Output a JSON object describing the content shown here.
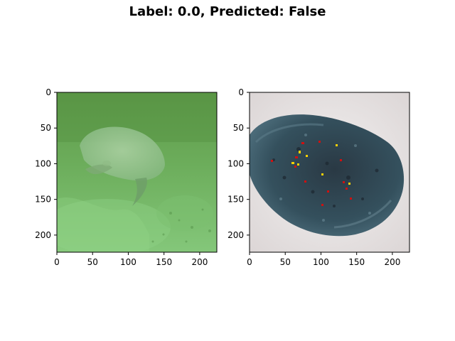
{
  "figure": {
    "title": "Label: 0.0, Predicted: False"
  },
  "panels": [
    {
      "name": "left-image",
      "content": "underwater fish photo, green tint",
      "x_ticks": [
        "0",
        "50",
        "100",
        "150",
        "200"
      ],
      "y_ticks": [
        "0",
        "50",
        "100",
        "150",
        "200"
      ],
      "x_tick_values": [
        0,
        50,
        100,
        150,
        200
      ],
      "y_tick_values": [
        0,
        50,
        100,
        150,
        200
      ],
      "extent": [
        0,
        224
      ]
    },
    {
      "name": "right-image",
      "content": "dark blue-gray rock on white background with red/yellow attribution pixels",
      "x_ticks": [
        "0",
        "50",
        "100",
        "150",
        "200"
      ],
      "y_ticks": [
        "0",
        "50",
        "100",
        "150",
        "200"
      ],
      "x_tick_values": [
        0,
        50,
        100,
        150,
        200
      ],
      "y_tick_values": [
        0,
        50,
        100,
        150,
        200
      ],
      "extent": [
        0,
        224
      ]
    }
  ],
  "colors": {
    "water_green": "#6fb05f",
    "rock_dark": "#2c3d48",
    "highlight_red": "#d01010",
    "highlight_yellow": "#ffd200"
  }
}
